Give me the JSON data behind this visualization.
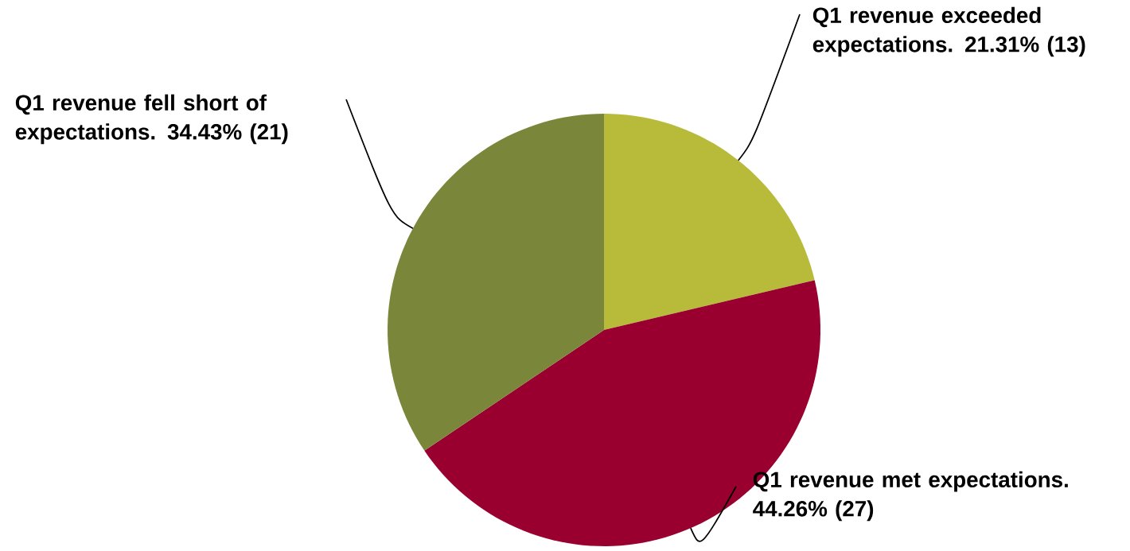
{
  "chart_data": {
    "type": "pie",
    "categories": [
      "Q1 revenue exceeded expectations.",
      "Q1 revenue met expectations.",
      "Q1 revenue fell short of expectations."
    ],
    "values": [
      13,
      27,
      21
    ],
    "value_labels": [
      "21.31% (13)",
      "44.26% (27)",
      "34.43% (21)"
    ],
    "colors": [
      "#b8bb3a",
      "#990030",
      "#7a8639"
    ]
  }
}
